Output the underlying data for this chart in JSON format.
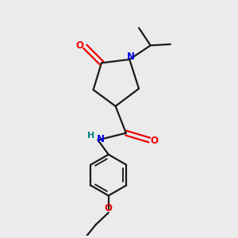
{
  "background_color": "#ebebeb",
  "bond_color": "#1a1a1a",
  "N_color": "#0000ee",
  "O_color": "#ee0000",
  "NH_color": "#008080",
  "figsize": [
    3.0,
    3.0
  ],
  "dpi": 100,
  "xlim": [
    0,
    10
  ],
  "ylim": [
    0,
    10
  ]
}
